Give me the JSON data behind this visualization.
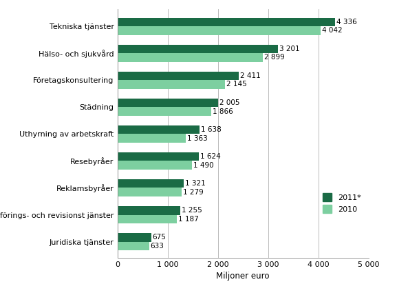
{
  "categories": [
    "Juridiska tjänster",
    "Bokförings- och revisionst jänster",
    "Reklamsbyråer",
    "Resebyråer",
    "Uthyrning av arbetskraft",
    "Städning",
    "Företagskonsultering",
    "Hälso- och sjukvård",
    "Tekniska tjänster"
  ],
  "values_2011": [
    675,
    1255,
    1321,
    1624,
    1638,
    2005,
    2411,
    3201,
    4336
  ],
  "values_2010": [
    633,
    1187,
    1279,
    1490,
    1363,
    1866,
    2145,
    2899,
    4042
  ],
  "labels_2011": [
    "675",
    "1 255",
    "1 321",
    "1 624",
    "1 638",
    "2 005",
    "2 411",
    "3 201",
    "4 336"
  ],
  "labels_2010": [
    "633",
    "1 187",
    "1 279",
    "1 490",
    "1 363",
    "1 866",
    "2 145",
    "2 899",
    "4 042"
  ],
  "color_2011": "#1a6b45",
  "color_2010": "#7dcfa0",
  "xlabel": "Miljoner euro",
  "xlim": [
    0,
    5000
  ],
  "xticks": [
    0,
    1000,
    2000,
    3000,
    4000,
    5000
  ],
  "xtick_labels": [
    "0",
    "1 000",
    "2 000",
    "3 000",
    "4 000",
    "5 000"
  ],
  "legend_2011": "2011*",
  "legend_2010": "2010",
  "background_color": "#ffffff",
  "bar_height": 0.32,
  "label_fontsize": 7.5,
  "tick_fontsize": 8,
  "xlabel_fontsize": 8.5
}
